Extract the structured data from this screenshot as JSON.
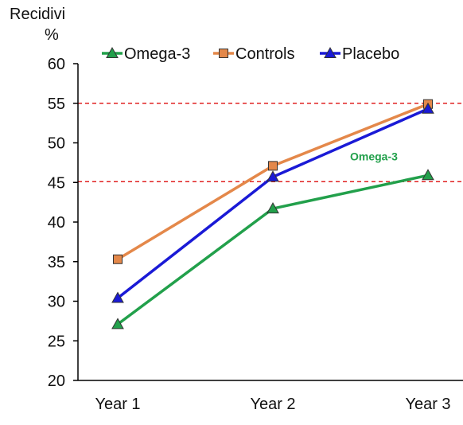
{
  "chart_data": {
    "type": "line",
    "title": "",
    "xlabel": "",
    "ylabel_line1": "Recidivi",
    "ylabel_line2": "%",
    "categories": [
      "Year 1",
      "Year 2",
      "Year 3"
    ],
    "ylim": [
      20,
      60
    ],
    "yticks": [
      20,
      25,
      30,
      35,
      40,
      45,
      50,
      55,
      60
    ],
    "grid": false,
    "legend_position": "top",
    "series": [
      {
        "name": "Omega-3",
        "values": [
          27.1,
          41.7,
          45.9
        ],
        "color": "#22a04b",
        "marker": "triangle"
      },
      {
        "name": "Controls",
        "values": [
          35.3,
          47.1,
          54.9
        ],
        "color": "#e4884a",
        "marker": "square"
      },
      {
        "name": "Placebo",
        "values": [
          30.4,
          45.7,
          54.3
        ],
        "color": "#1a1ad6",
        "marker": "triangle"
      }
    ],
    "reference_lines": [
      {
        "y": 55.0,
        "color": "#e02020",
        "style": "dashed"
      },
      {
        "y": 45.1,
        "color": "#e02020",
        "style": "dashed"
      }
    ],
    "annotations": [
      {
        "text": "Omega-3",
        "x": "Year 3",
        "y": 47.8,
        "color": "#22a04b"
      }
    ]
  }
}
